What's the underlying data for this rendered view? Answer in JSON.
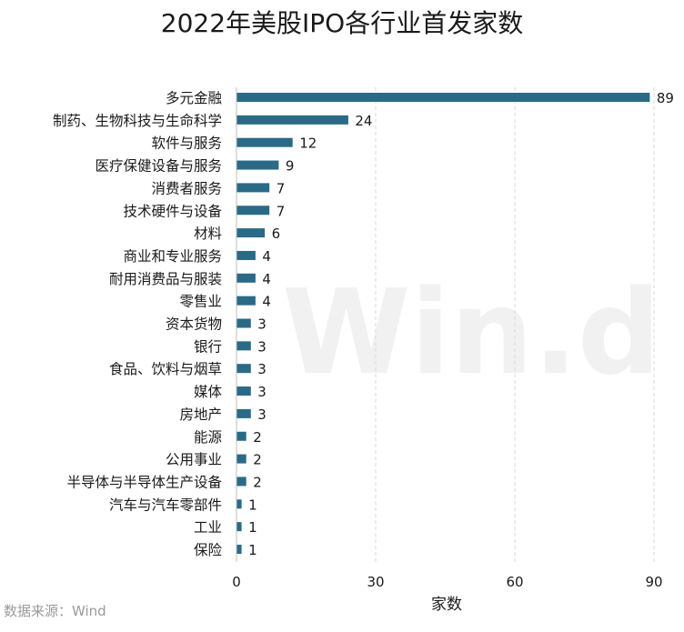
{
  "chart_data": {
    "type": "bar",
    "orientation": "horizontal",
    "title": "2022年美股IPO各行业首发家数",
    "xlabel": "家数",
    "ylabel": "",
    "xlim": [
      0,
      90
    ],
    "xticks": [
      0,
      30,
      60,
      90
    ],
    "grid": "vertical dashed",
    "bar_color": "#2a6a87",
    "categories": [
      "多元金融",
      "制药、生物科技与生命科学",
      "软件与服务",
      "医疗保健设备与服务",
      "消费者服务",
      "技术硬件与设备",
      "材料",
      "商业和专业服务",
      "耐用消费品与服装",
      "零售业",
      "资本货物",
      "银行",
      "食品、饮料与烟草",
      "媒体",
      "房地产",
      "能源",
      "公用事业",
      "半导体与半导体生产设备",
      "汽车与汽车零部件",
      "工业",
      "保险"
    ],
    "values": [
      89,
      24,
      12,
      9,
      7,
      7,
      6,
      4,
      4,
      4,
      3,
      3,
      3,
      3,
      3,
      2,
      2,
      2,
      1,
      1,
      1
    ]
  },
  "source": "数据来源：Wind",
  "watermark": "Win.d"
}
